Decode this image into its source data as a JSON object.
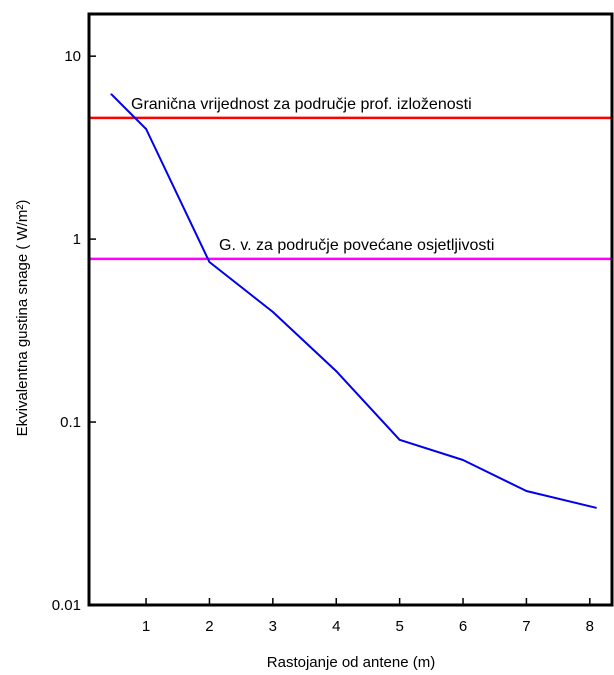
{
  "chart_data": {
    "type": "line",
    "xlabel": "Rastojanje od antene (m)",
    "ylabel": "Ekvivalentna gustina snage ( W/m²)",
    "x_ticks": [
      1,
      2,
      3,
      4,
      5,
      6,
      7,
      8
    ],
    "y_ticks": [
      0.01,
      0.1,
      1,
      10
    ],
    "y_tick_labels": [
      "0.01",
      "0.1",
      "1",
      "10"
    ],
    "x_tick_labels": [
      "1",
      "2",
      "3",
      "4",
      "5",
      "6",
      "7",
      "8"
    ],
    "xlim": [
      0.1,
      8.35
    ],
    "ylim": [
      0.01,
      17
    ],
    "yscale": "log",
    "grid": false,
    "series": [
      {
        "color": "#0000ee",
        "x": [
          0.45,
          1.0,
          2.0,
          3.0,
          4.0,
          5.0,
          6.0,
          7.0,
          8.1
        ],
        "y": [
          6.2,
          4.0,
          0.75,
          0.4,
          0.19,
          0.08,
          0.062,
          0.042,
          0.034
        ]
      }
    ],
    "reference_lines": [
      {
        "y": 4.6,
        "color": "#ff0000",
        "label": "Granična vrijednost za područje prof. izloženosti"
      },
      {
        "y": 0.78,
        "color": "#ff00ff",
        "label": "G. v. za područje povećane osjetljivosti"
      }
    ]
  }
}
